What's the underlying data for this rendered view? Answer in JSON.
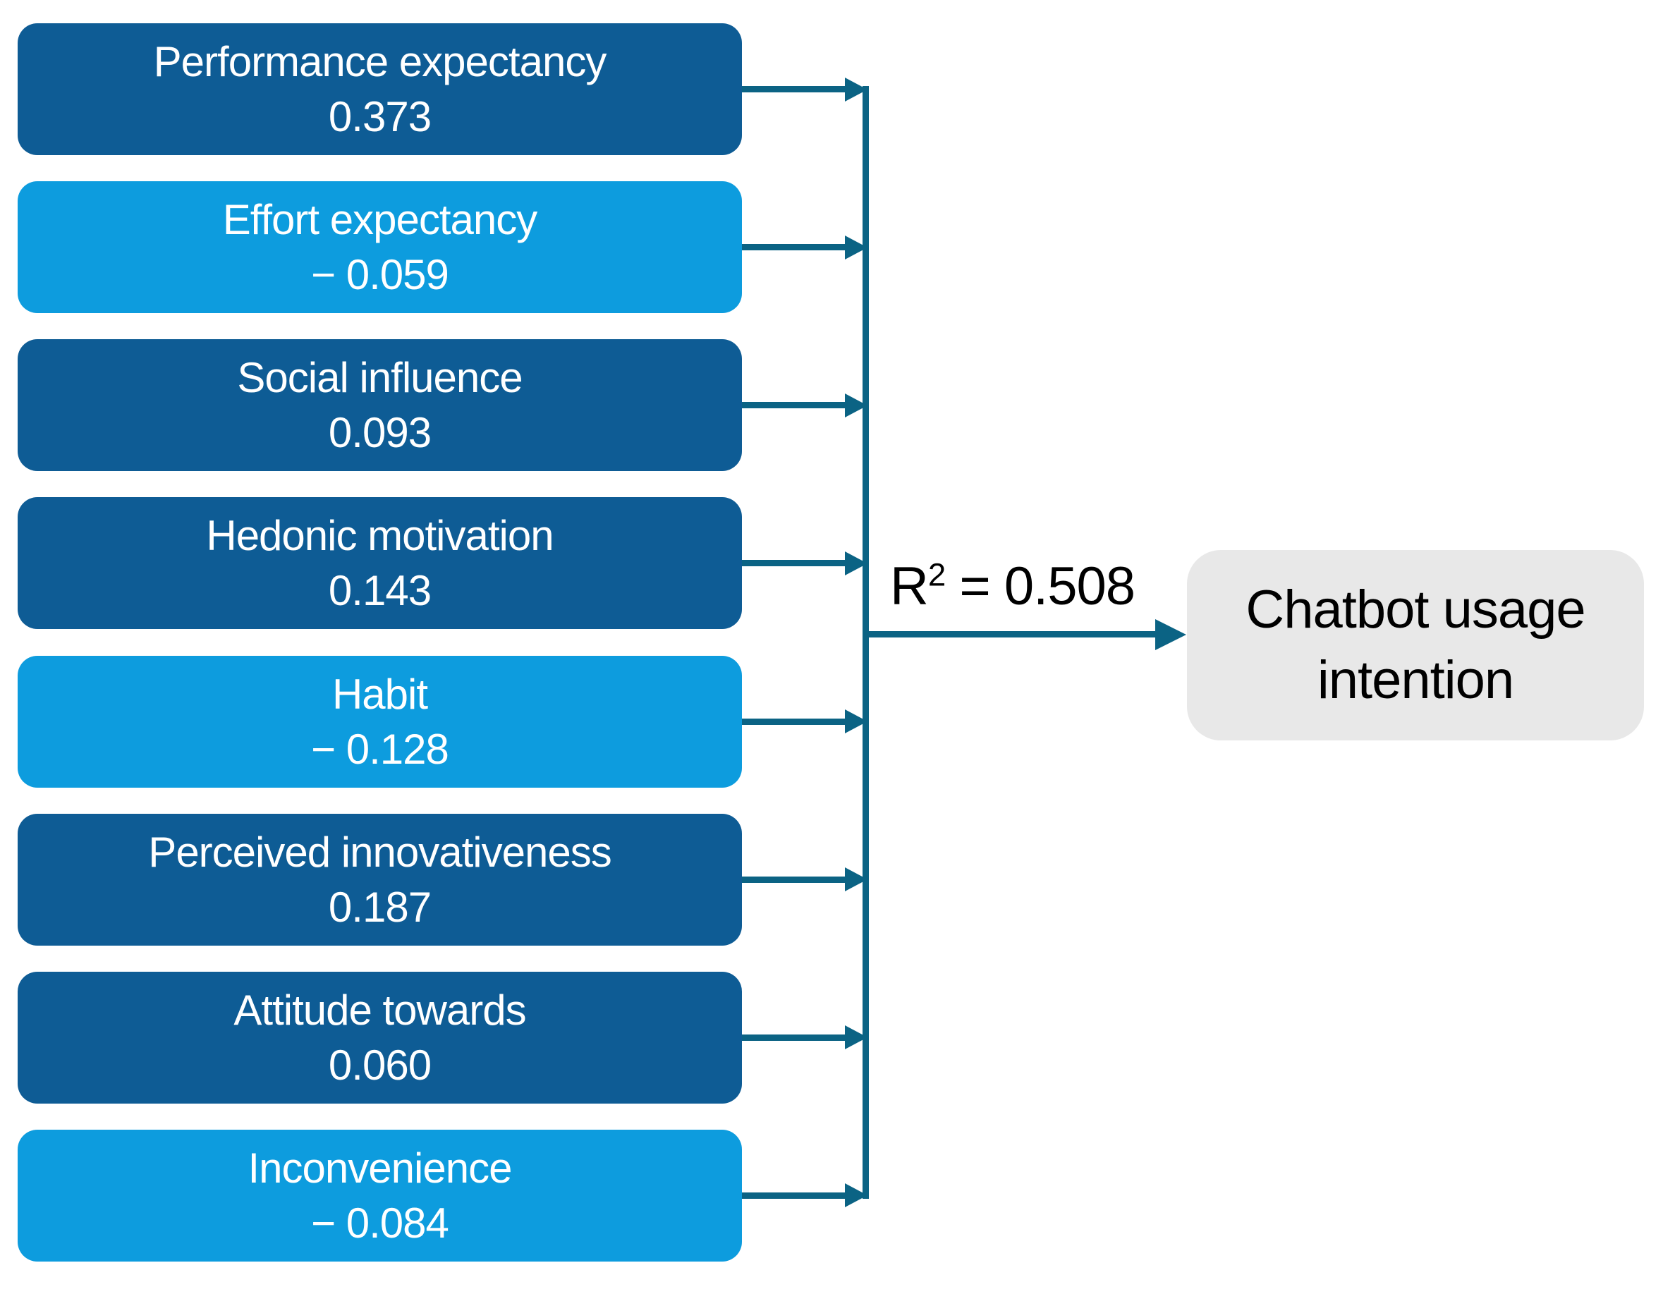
{
  "diagram": {
    "predictors": [
      {
        "label": "Performance expectancy",
        "value": "0.373",
        "valence": "positive"
      },
      {
        "label": "Effort expectancy",
        "value": "− 0.059",
        "valence": "negative"
      },
      {
        "label": "Social influence",
        "value": "0.093",
        "valence": "positive"
      },
      {
        "label": "Hedonic motivation",
        "value": "0.143",
        "valence": "positive"
      },
      {
        "label": "Habit",
        "value": "− 0.128",
        "valence": "negative"
      },
      {
        "label": "Perceived innovativeness",
        "value": "0.187",
        "valence": "positive"
      },
      {
        "label": "Attitude towards",
        "value": "0.060",
        "valence": "positive"
      },
      {
        "label": "Inconvenience",
        "value": "− 0.084",
        "valence": "negative"
      }
    ],
    "r_squared": {
      "symbol": "R",
      "superscript": "2",
      "equals_value": " = 0.508",
      "display": "R² = 0.508"
    },
    "outcome": {
      "label": "Chatbot usage intention"
    },
    "colors": {
      "positive_box": "#0E5C95",
      "negative_box": "#0D9CDE",
      "arrow": "#0B6384",
      "outcome_box": "#E8E8E8",
      "box_text": "#FFFFFF",
      "outcome_text": "#000000"
    }
  }
}
